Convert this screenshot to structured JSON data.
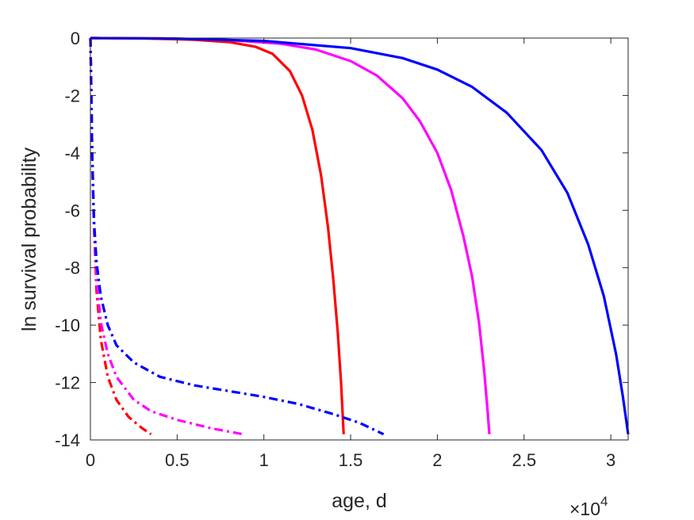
{
  "chart_data": {
    "type": "line",
    "xlabel": "age, d",
    "ylabel": "ln survival probability",
    "x_exponent_label": {
      "base": "×10",
      "exponent": "4"
    },
    "xlim": [
      0,
      31000
    ],
    "ylim": [
      -14,
      0
    ],
    "xticks": [
      0,
      5000,
      10000,
      15000,
      20000,
      25000,
      30000
    ],
    "xtick_labels": [
      "0",
      "0.5",
      "1",
      "1.5",
      "2",
      "2.5",
      "3"
    ],
    "yticks": [
      0,
      -2,
      -4,
      -6,
      -8,
      -10,
      -12,
      -14
    ],
    "ytick_labels": [
      "0",
      "-2",
      "-4",
      "-6",
      "-8",
      "-10",
      "-12",
      "-14"
    ],
    "grid": false,
    "box": true,
    "series": [
      {
        "color": "#ff0000",
        "style": "solid",
        "points": [
          [
            0,
            0
          ],
          [
            3000,
            -0.01
          ],
          [
            6000,
            -0.06
          ],
          [
            8000,
            -0.14
          ],
          [
            9500,
            -0.3
          ],
          [
            10500,
            -0.55
          ],
          [
            11500,
            -1.15
          ],
          [
            12200,
            -2.0
          ],
          [
            12800,
            -3.2
          ],
          [
            13300,
            -4.8
          ],
          [
            13700,
            -6.6
          ],
          [
            14000,
            -8.4
          ],
          [
            14250,
            -10.2
          ],
          [
            14450,
            -12.0
          ],
          [
            14600,
            -13.8
          ]
        ]
      },
      {
        "color": "#ff00ff",
        "style": "solid",
        "points": [
          [
            0,
            0
          ],
          [
            4000,
            -0.01
          ],
          [
            8000,
            -0.07
          ],
          [
            11000,
            -0.2
          ],
          [
            13000,
            -0.4
          ],
          [
            15000,
            -0.8
          ],
          [
            16500,
            -1.3
          ],
          [
            18000,
            -2.1
          ],
          [
            19000,
            -2.9
          ],
          [
            20000,
            -4.0
          ],
          [
            20800,
            -5.3
          ],
          [
            21500,
            -6.9
          ],
          [
            22000,
            -8.3
          ],
          [
            22400,
            -9.9
          ],
          [
            22700,
            -11.6
          ],
          [
            22900,
            -13.0
          ],
          [
            23000,
            -13.8
          ]
        ]
      },
      {
        "color": "#0000ff",
        "style": "solid",
        "points": [
          [
            0,
            0
          ],
          [
            5000,
            -0.02
          ],
          [
            10000,
            -0.1
          ],
          [
            15000,
            -0.35
          ],
          [
            18000,
            -0.7
          ],
          [
            20000,
            -1.1
          ],
          [
            22000,
            -1.7
          ],
          [
            24000,
            -2.6
          ],
          [
            26000,
            -3.9
          ],
          [
            27500,
            -5.4
          ],
          [
            28700,
            -7.2
          ],
          [
            29600,
            -9.0
          ],
          [
            30300,
            -11.0
          ],
          [
            30700,
            -12.5
          ],
          [
            31000,
            -13.8
          ]
        ]
      },
      {
        "color": "#ff0000",
        "style": "dashdot",
        "points": [
          [
            0,
            0
          ],
          [
            40,
            -1.5
          ],
          [
            100,
            -4.0
          ],
          [
            200,
            -6.5
          ],
          [
            350,
            -8.8
          ],
          [
            600,
            -10.5
          ],
          [
            1000,
            -11.8
          ],
          [
            1500,
            -12.6
          ],
          [
            2200,
            -13.2
          ],
          [
            3000,
            -13.6
          ],
          [
            3500,
            -13.8
          ]
        ]
      },
      {
        "color": "#ff00ff",
        "style": "dashdot",
        "points": [
          [
            0,
            0
          ],
          [
            40,
            -1.5
          ],
          [
            100,
            -4.0
          ],
          [
            200,
            -6.5
          ],
          [
            350,
            -8.4
          ],
          [
            600,
            -9.9
          ],
          [
            1000,
            -11.0
          ],
          [
            1500,
            -11.8
          ],
          [
            2500,
            -12.6
          ],
          [
            3500,
            -13.0
          ],
          [
            5000,
            -13.3
          ],
          [
            7000,
            -13.6
          ],
          [
            8800,
            -13.8
          ]
        ]
      },
      {
        "color": "#0000ff",
        "style": "dashdot",
        "points": [
          [
            0,
            0
          ],
          [
            40,
            -1.5
          ],
          [
            100,
            -4.0
          ],
          [
            200,
            -6.3
          ],
          [
            350,
            -7.8
          ],
          [
            600,
            -9.0
          ],
          [
            1000,
            -10.0
          ],
          [
            1500,
            -10.7
          ],
          [
            2500,
            -11.3
          ],
          [
            4000,
            -11.8
          ],
          [
            6000,
            -12.1
          ],
          [
            8000,
            -12.3
          ],
          [
            10000,
            -12.5
          ],
          [
            12000,
            -12.75
          ],
          [
            14000,
            -13.1
          ],
          [
            15500,
            -13.4
          ],
          [
            16900,
            -13.8
          ]
        ]
      }
    ]
  }
}
